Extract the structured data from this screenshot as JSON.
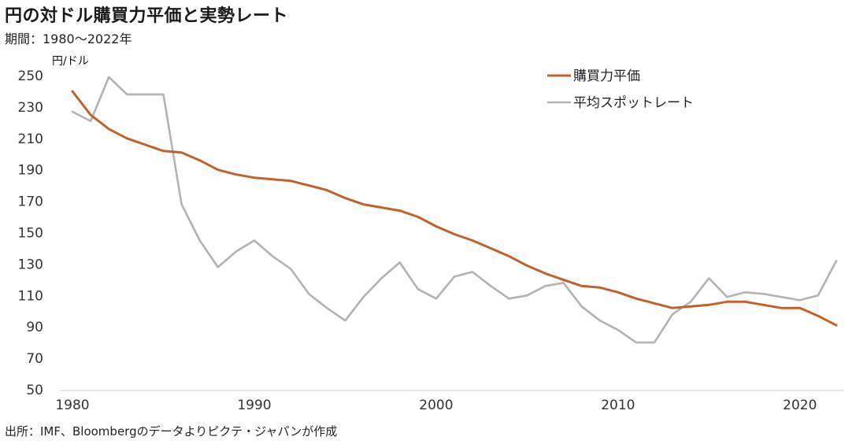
{
  "header": {
    "title": "円の対ドル購買力平価と実勢レート",
    "subtitle": "期間：1980～2022年"
  },
  "footer": {
    "source": "出所：IMF、Bloombergのデータよりピクテ・ジャパンが作成"
  },
  "chart_data": {
    "type": "line",
    "title": "円の対ドル購買力平価と実勢レート",
    "ylabel": "円/ドル",
    "xlabel": "",
    "xlim": [
      1980,
      2022
    ],
    "ylim": [
      50,
      250
    ],
    "yticks": [
      250,
      230,
      210,
      190,
      170,
      150,
      130,
      110,
      90,
      70,
      50
    ],
    "xticks": [
      1980,
      1990,
      2000,
      2010,
      2020
    ],
    "grid": false,
    "legend_position": "top-right",
    "x": [
      1980,
      1981,
      1982,
      1983,
      1984,
      1985,
      1986,
      1987,
      1988,
      1989,
      1990,
      1991,
      1992,
      1993,
      1994,
      1995,
      1996,
      1997,
      1998,
      1999,
      2000,
      2001,
      2002,
      2003,
      2004,
      2005,
      2006,
      2007,
      2008,
      2009,
      2010,
      2011,
      2012,
      2013,
      2014,
      2015,
      2016,
      2017,
      2018,
      2019,
      2020,
      2021,
      2022
    ],
    "series": [
      {
        "name": "購買力平価",
        "color": "#c0622b",
        "values": [
          240,
          225,
          216,
          210,
          206,
          202,
          201,
          196,
          190,
          187,
          185,
          184,
          183,
          180,
          177,
          172,
          168,
          166,
          164,
          160,
          154,
          149,
          145,
          140,
          135,
          129,
          124,
          120,
          116,
          115,
          112,
          108,
          105,
          102,
          103,
          104,
          106,
          106,
          104,
          102,
          102,
          97,
          91
        ]
      },
      {
        "name": "平均スポットレート",
        "color": "#b3b3b3",
        "values": [
          227,
          221,
          249,
          238,
          238,
          238,
          168,
          145,
          128,
          138,
          145,
          135,
          127,
          111,
          102,
          94,
          109,
          121,
          131,
          114,
          108,
          122,
          125,
          116,
          108,
          110,
          116,
          118,
          103,
          94,
          88,
          80,
          80,
          98,
          106,
          121,
          109,
          112,
          111,
          109,
          107,
          110,
          132
        ]
      }
    ]
  }
}
